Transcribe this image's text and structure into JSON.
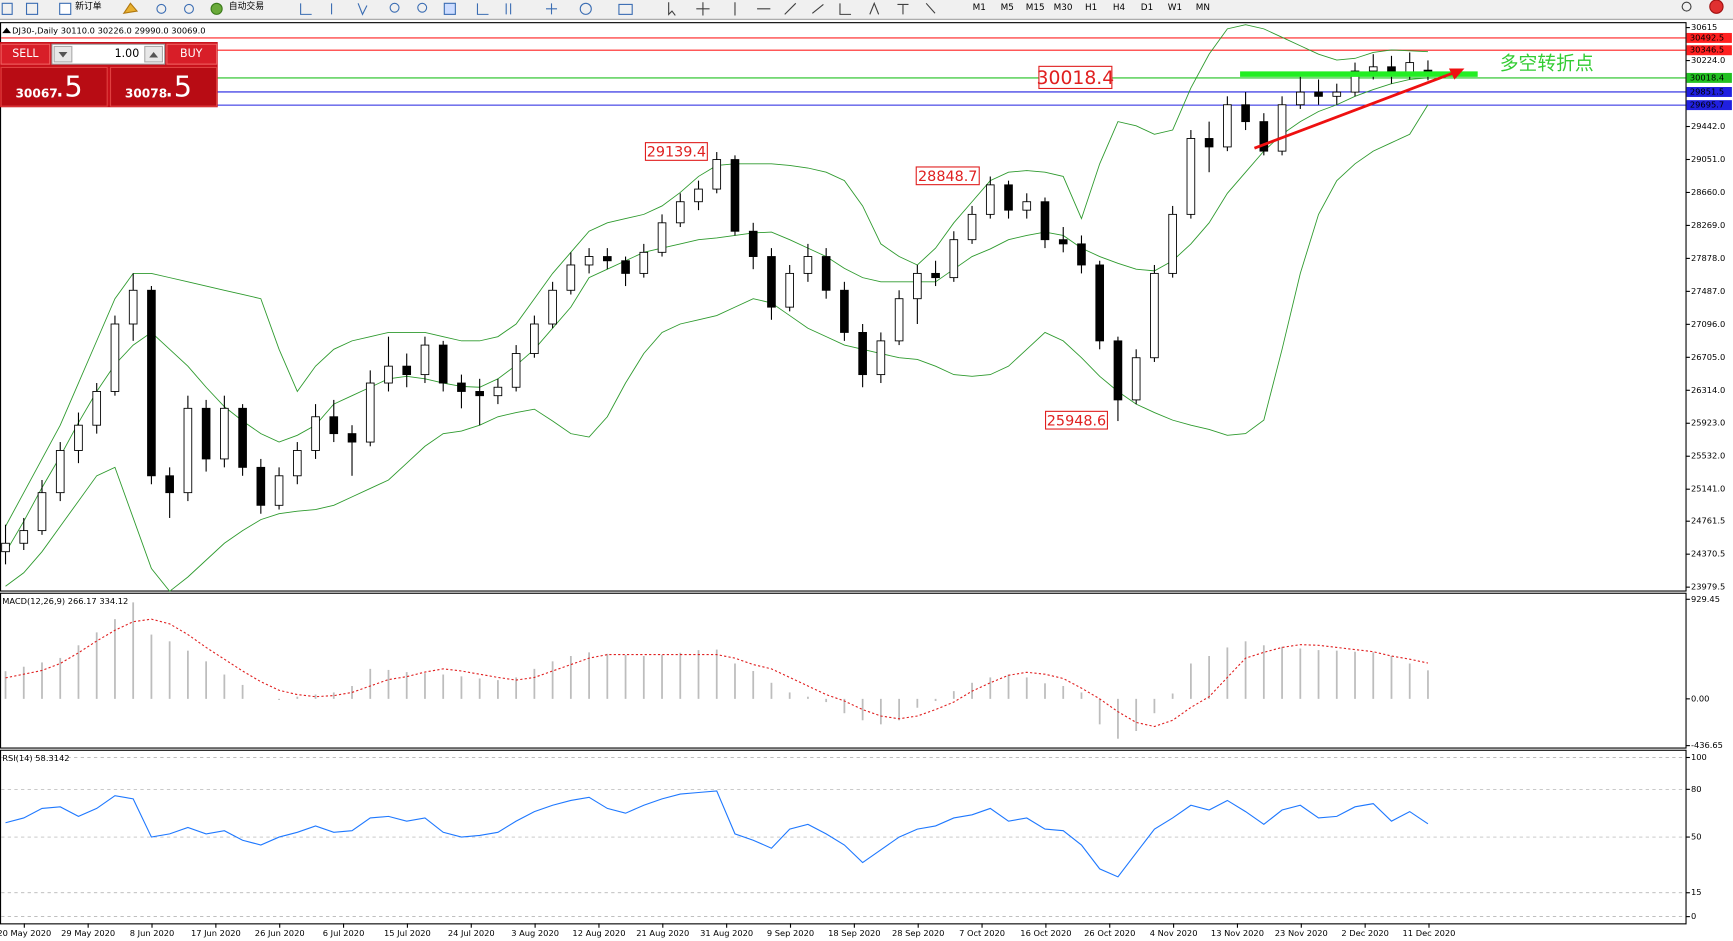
{
  "toolbar": {
    "new_order": "新订单",
    "auto_trading": "自动交易",
    "timeframes": [
      "M1",
      "M5",
      "M15",
      "M30",
      "H1",
      "H4",
      "D1",
      "W1",
      "MN"
    ]
  },
  "trade_panel": {
    "lots": "1.00",
    "sell": {
      "label": "SELL",
      "price": "30067",
      "pips": ".5"
    },
    "buy": {
      "label": "BUY",
      "price": "30078",
      "pips": ".5"
    }
  },
  "chart_data": [
    {
      "type": "candlestick",
      "title": "DJ30-,Daily  30110.0 30226.0 29990.0 30069.0",
      "up_color": "#ffffff",
      "down_color": "#000000",
      "ylim": [
        23940,
        30680
      ],
      "yticks": [
        30615,
        {
          "value": 30224,
          "label": "30224.0"
        },
        {
          "value": 29442,
          "label": "29442.0"
        },
        {
          "value": 29051,
          "label": "29051.0"
        },
        {
          "value": 28660,
          "label": "28660.0"
        },
        {
          "value": 28269,
          "label": "28269.0"
        },
        {
          "value": 27878,
          "label": "27878.0"
        },
        {
          "value": 27487,
          "label": "27487.0"
        },
        {
          "value": 27096,
          "label": "27096.0"
        },
        {
          "value": 26705,
          "label": "26705.0"
        },
        {
          "value": 26314,
          "label": "26314.0"
        },
        {
          "value": 25923,
          "label": "25923.0"
        },
        {
          "value": 25532,
          "label": "25532.0"
        },
        {
          "value": 25141,
          "label": "25141.0"
        },
        24761.5,
        24370.5,
        23979.5
      ],
      "levels": [
        {
          "value": 30492.5,
          "color": "#ff2020"
        },
        {
          "value": 30346.5,
          "color": "#ff2020"
        },
        {
          "value": 30018.4,
          "color": "#22c022"
        },
        {
          "value": 29851.5,
          "color": "#2020e0"
        },
        {
          "value": 29695.7,
          "color": "#2020e0"
        }
      ],
      "annotations": [
        29139.4,
        28848.7,
        25948.6,
        30018.4
      ],
      "note": "多空转折点",
      "date_labels": [
        "20 May 2020",
        "29 May 2020",
        "8 Jun 2020",
        "17 Jun 2020",
        "26 Jun 2020",
        "6 Jul 2020",
        "15 Jul 2020",
        "24 Jul 2020",
        "3 Aug 2020",
        "12 Aug 2020",
        "21 Aug 2020",
        "31 Aug 2020",
        "9 Sep 2020",
        "18 Sep 2020",
        "28 Sep 2020",
        "7 Oct 2020",
        "16 Oct 2020",
        "26 Oct 2020",
        "4 Nov 2020",
        "13 Nov 2020",
        "23 Nov 2020",
        "2 Dec 2020",
        "11 Dec 2020"
      ],
      "ohlc": [
        [
          24400,
          24720,
          24250,
          24500
        ],
        [
          24500,
          24800,
          24420,
          24650
        ],
        [
          24650,
          25250,
          24600,
          25100
        ],
        [
          25100,
          25700,
          25000,
          25600
        ],
        [
          25600,
          26050,
          25450,
          25900
        ],
        [
          25900,
          26400,
          25800,
          26300
        ],
        [
          26300,
          27200,
          26250,
          27100
        ],
        [
          27100,
          27700,
          26900,
          27500
        ],
        [
          27500,
          27550,
          25200,
          25300
        ],
        [
          25300,
          25400,
          24800,
          25100
        ],
        [
          25100,
          26250,
          25000,
          26100
        ],
        [
          26100,
          26200,
          25350,
          25500
        ],
        [
          25500,
          26250,
          25400,
          26100
        ],
        [
          26100,
          26150,
          25300,
          25400
        ],
        [
          25400,
          25500,
          24850,
          24950
        ],
        [
          24950,
          25400,
          24900,
          25300
        ],
        [
          25300,
          25700,
          25200,
          25600
        ],
        [
          25600,
          26150,
          25500,
          26000
        ],
        [
          26000,
          26200,
          25700,
          25800
        ],
        [
          25800,
          25900,
          25300,
          25700
        ],
        [
          25700,
          26550,
          25650,
          26400
        ],
        [
          26400,
          26950,
          26300,
          26600
        ],
        [
          26600,
          26750,
          26350,
          26500
        ],
        [
          26500,
          26950,
          26400,
          26850
        ],
        [
          26850,
          26900,
          26300,
          26400
        ],
        [
          26400,
          26500,
          26100,
          26300
        ],
        [
          26300,
          26450,
          25900,
          26250
        ],
        [
          26250,
          26450,
          26150,
          26350
        ],
        [
          26350,
          26850,
          26300,
          26750
        ],
        [
          26750,
          27200,
          26700,
          27100
        ],
        [
          27100,
          27600,
          27050,
          27500
        ],
        [
          27500,
          27950,
          27450,
          27800
        ],
        [
          27800,
          28000,
          27700,
          27900
        ],
        [
          27900,
          28000,
          27750,
          27850
        ],
        [
          27850,
          27900,
          27550,
          27700
        ],
        [
          27700,
          28050,
          27650,
          27950
        ],
        [
          27950,
          28400,
          27900,
          28300
        ],
        [
          28300,
          28650,
          28250,
          28550
        ],
        [
          28550,
          28800,
          28450,
          28700
        ],
        [
          28700,
          29139,
          28650,
          29050
        ],
        [
          29050,
          29100,
          28150,
          28200
        ],
        [
          28200,
          28300,
          27750,
          27900
        ],
        [
          27900,
          28000,
          27150,
          27300
        ],
        [
          27300,
          27800,
          27250,
          27700
        ],
        [
          27700,
          28050,
          27600,
          27900
        ],
        [
          27900,
          28000,
          27400,
          27500
        ],
        [
          27500,
          27600,
          26900,
          27000
        ],
        [
          27000,
          27100,
          26350,
          26500
        ],
        [
          26500,
          27000,
          26400,
          26900
        ],
        [
          26900,
          27500,
          26850,
          27400
        ],
        [
          27400,
          27800,
          27100,
          27700
        ],
        [
          27700,
          27850,
          27550,
          27650
        ],
        [
          27650,
          28200,
          27600,
          28100
        ],
        [
          28100,
          28500,
          28050,
          28400
        ],
        [
          28400,
          28849,
          28350,
          28750
        ],
        [
          28750,
          28800,
          28350,
          28450
        ],
        [
          28450,
          28650,
          28350,
          28550
        ],
        [
          28550,
          28600,
          28000,
          28100
        ],
        [
          28100,
          28250,
          27950,
          28050
        ],
        [
          28050,
          28150,
          27700,
          27800
        ],
        [
          27800,
          27850,
          26800,
          26900
        ],
        [
          26900,
          26950,
          25949,
          26200
        ],
        [
          26200,
          26800,
          26150,
          26700
        ],
        [
          26700,
          27800,
          26650,
          27700
        ],
        [
          27700,
          28500,
          27650,
          28400
        ],
        [
          28400,
          29400,
          28350,
          29300
        ],
        [
          29300,
          29500,
          28900,
          29200
        ],
        [
          29200,
          29800,
          29150,
          29700
        ],
        [
          29700,
          29850,
          29400,
          29500
        ],
        [
          29500,
          29600,
          29100,
          29150
        ],
        [
          29150,
          29800,
          29100,
          29700
        ],
        [
          29700,
          30050,
          29650,
          29850
        ],
        [
          29850,
          30000,
          29700,
          29800
        ],
        [
          29800,
          29950,
          29700,
          29850
        ],
        [
          29850,
          30200,
          29800,
          30100
        ],
        [
          30100,
          30300,
          30000,
          30150
        ],
        [
          30150,
          30280,
          29950,
          30050
        ],
        [
          30050,
          30320,
          30000,
          30200
        ],
        [
          30110,
          30226,
          29990,
          30069
        ]
      ],
      "bands": {
        "color": "#2e9a2e",
        "upper": [
          24700,
          25100,
          25500,
          25900,
          26400,
          26900,
          27400,
          27700,
          27700,
          27650,
          27600,
          27550,
          27500,
          27450,
          27400,
          26800,
          26300,
          26600,
          26800,
          26900,
          26950,
          27000,
          27000,
          27000,
          26950,
          26900,
          26900,
          26950,
          27100,
          27400,
          27700,
          27950,
          28200,
          28300,
          28350,
          28400,
          28500,
          28660,
          28850,
          28980,
          29000,
          29000,
          29000,
          28980,
          28950,
          28900,
          28800,
          28500,
          28050,
          27900,
          27800,
          28000,
          28300,
          28550,
          28800,
          28900,
          28920,
          28900,
          28850,
          28350,
          29000,
          29500,
          29450,
          29350,
          29400,
          29900,
          30300,
          30600,
          30650,
          30600,
          30500,
          30400,
          30300,
          30230,
          30250,
          30320,
          30350,
          30340,
          30330
        ],
        "middle": [
          24390,
          24760,
          25160,
          25530,
          25930,
          26300,
          26620,
          26850,
          27000,
          26800,
          26600,
          26350,
          26120,
          25950,
          25800,
          25700,
          25780,
          25900,
          26150,
          26250,
          26350,
          26450,
          26480,
          26450,
          26400,
          26360,
          26350,
          26450,
          26610,
          26800,
          27050,
          27300,
          27650,
          27750,
          27850,
          27950,
          28000,
          28050,
          28100,
          28120,
          28150,
          28180,
          28190,
          28100,
          28000,
          27900,
          27760,
          27650,
          27600,
          27600,
          27600,
          27600,
          27750,
          27900,
          27990,
          28100,
          28150,
          28190,
          28150,
          28000,
          27900,
          27820,
          27750,
          27730,
          27850,
          28050,
          28300,
          28650,
          28900,
          29150,
          29350,
          29500,
          29620,
          29700,
          29800,
          29880,
          29950,
          30000,
          30020
        ],
        "lower": [
          23990,
          24150,
          24400,
          24700,
          25000,
          25300,
          25400,
          24800,
          24200,
          23930,
          24100,
          24300,
          24500,
          24650,
          24780,
          24850,
          24880,
          24900,
          24950,
          25050,
          25150,
          25250,
          25450,
          25650,
          25800,
          25830,
          25900,
          26000,
          26050,
          26090,
          25950,
          25800,
          25760,
          26000,
          26400,
          26750,
          27000,
          27100,
          27150,
          27200,
          27300,
          27400,
          27350,
          27200,
          27050,
          26950,
          26850,
          26800,
          26750,
          26700,
          26680,
          26600,
          26500,
          26480,
          26500,
          26600,
          26800,
          27000,
          26900,
          26700,
          26480,
          26300,
          26150,
          26050,
          25960,
          25900,
          25850,
          25780,
          25800,
          25960,
          26800,
          27700,
          28400,
          28800,
          29000,
          29150,
          29250,
          29350,
          29700
        ]
      }
    },
    {
      "type": "macd",
      "title": "MACD(12,26,9) 266.17 334.12",
      "histogram_color": "#bdbdbd",
      "signal_color": "#e02020",
      "ylim": [
        -454,
        991
      ],
      "yticks": [
        929.45,
        {
          "value": 0,
          "label": "0.00"
        },
        -436.65
      ],
      "histogram": [
        258,
        300,
        340,
        382,
        500,
        620,
        744,
        900,
        600,
        537,
        450,
        350,
        227,
        130,
        0,
        -10,
        20,
        40,
        60,
        120,
        280,
        270,
        250,
        240,
        227,
        210,
        190,
        175,
        200,
        280,
        350,
        400,
        434,
        420,
        410,
        400,
        410,
        430,
        455,
        460,
        330,
        260,
        150,
        60,
        20,
        -30,
        -134,
        -200,
        -238,
        -200,
        -83,
        -20,
        72,
        150,
        200,
        227,
        200,
        145,
        120,
        60,
        -238,
        -372,
        -300,
        -134,
        50,
        330,
        400,
        480,
        537,
        500,
        486,
        470,
        455,
        450,
        440,
        434,
        400,
        330,
        266.17
      ],
      "signal": [
        196,
        230,
        265,
        330,
        430,
        540,
        640,
        720,
        744,
        700,
        600,
        480,
        370,
        260,
        160,
        80,
        40,
        20,
        30,
        60,
        120,
        180,
        207,
        250,
        280,
        260,
        230,
        200,
        175,
        200,
        260,
        320,
        380,
        413,
        413,
        413,
        413,
        413,
        413,
        413,
        380,
        320,
        280,
        200,
        120,
        40,
        -20,
        -100,
        -160,
        -186,
        -160,
        -100,
        -30,
        72,
        150,
        220,
        248,
        230,
        190,
        100,
        0,
        -120,
        -220,
        -258,
        -200,
        -80,
        20,
        200,
        380,
        434,
        480,
        506,
        500,
        480,
        460,
        440,
        400,
        370,
        334.12
      ]
    },
    {
      "type": "rsi",
      "title": "RSI(14) 58.3142",
      "color": "#1e78ff",
      "ylim": [
        -4.2,
        104.9
      ],
      "yticks": [
        100,
        80,
        50,
        15,
        0
      ],
      "values": [
        59,
        62,
        68,
        69,
        63,
        68,
        76,
        74,
        50,
        52,
        56,
        52,
        54,
        48,
        45,
        50,
        53,
        57,
        53,
        54,
        62,
        63,
        60,
        62,
        53,
        50,
        51,
        53,
        60,
        66,
        70,
        73,
        75,
        68,
        65,
        70,
        74,
        77,
        78,
        79,
        52,
        48,
        43,
        55,
        58,
        52,
        45,
        34,
        42,
        50,
        55,
        57,
        62,
        64,
        68,
        60,
        62,
        55,
        54,
        45,
        30,
        25,
        40,
        55,
        62,
        70,
        67,
        73,
        66,
        58,
        67,
        70,
        62,
        63,
        69,
        71,
        60,
        66,
        58.3142
      ]
    }
  ]
}
